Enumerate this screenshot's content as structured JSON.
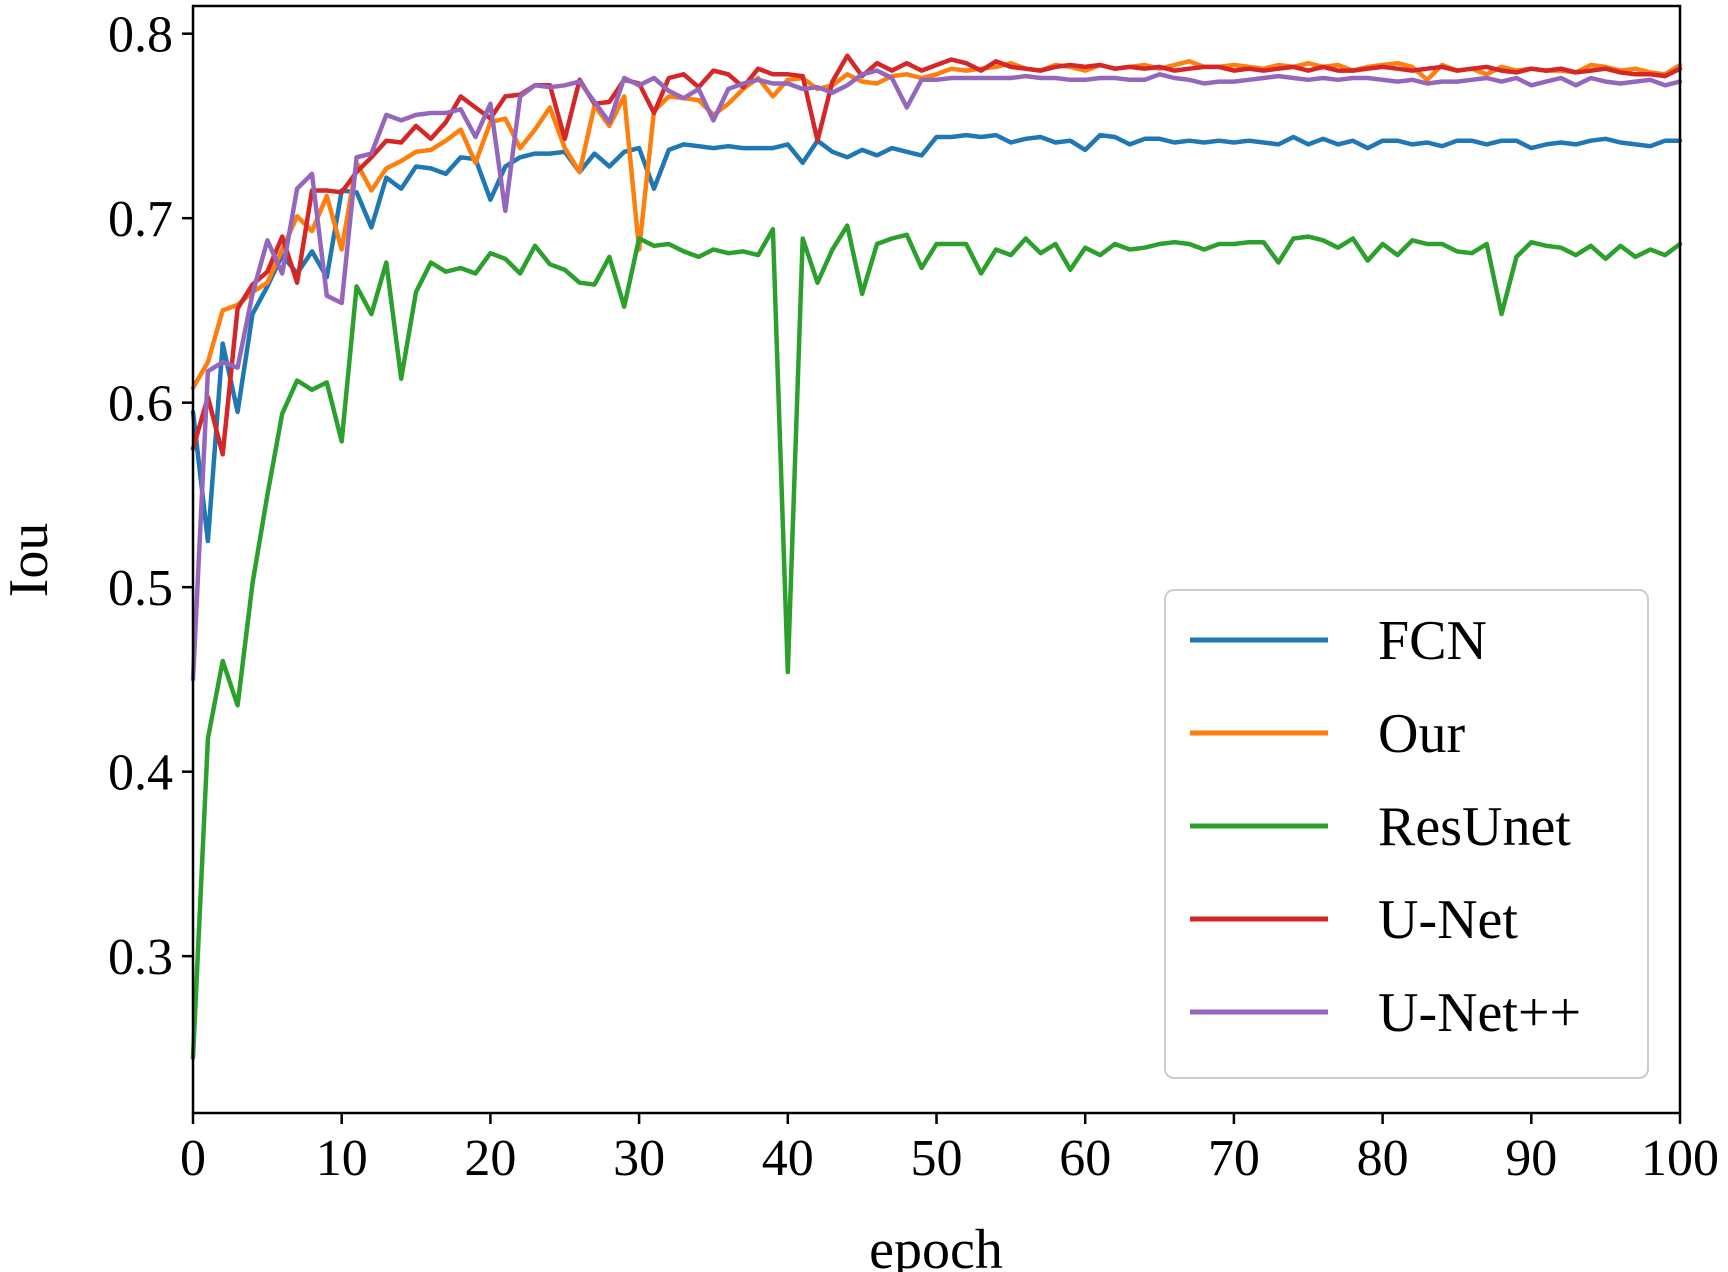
{
  "chart_data": {
    "type": "line",
    "title": "",
    "xlabel": "epoch",
    "ylabel": "Iou",
    "xlim": [
      0,
      100
    ],
    "ylim": [
      0.215,
      0.815
    ],
    "xticks": [
      0,
      10,
      20,
      30,
      40,
      50,
      60,
      70,
      80,
      90,
      100
    ],
    "yticks": [
      0.3,
      0.4,
      0.5,
      0.6,
      0.7,
      0.8
    ],
    "xtick_labels": [
      "0",
      "10",
      "20",
      "30",
      "40",
      "50",
      "60",
      "70",
      "80",
      "90",
      "100"
    ],
    "ytick_labels": [
      "0.3",
      "0.4",
      "0.5",
      "0.6",
      "0.7",
      "0.8"
    ],
    "grid": false,
    "legend_position": "lower-right",
    "x": [
      0,
      1,
      2,
      3,
      4,
      5,
      6,
      7,
      8,
      9,
      10,
      11,
      12,
      13,
      14,
      15,
      16,
      17,
      18,
      19,
      20,
      21,
      22,
      23,
      24,
      25,
      26,
      27,
      28,
      29,
      30,
      31,
      32,
      33,
      34,
      35,
      36,
      37,
      38,
      39,
      40,
      41,
      42,
      43,
      44,
      45,
      46,
      47,
      48,
      49,
      50,
      51,
      52,
      53,
      54,
      55,
      56,
      57,
      58,
      59,
      60,
      61,
      62,
      63,
      64,
      65,
      66,
      67,
      68,
      69,
      70,
      71,
      72,
      73,
      74,
      75,
      76,
      77,
      78,
      79,
      80,
      81,
      82,
      83,
      84,
      85,
      86,
      87,
      88,
      89,
      90,
      91,
      92,
      93,
      94,
      95,
      96,
      97,
      98,
      99,
      100
    ],
    "series": [
      {
        "name": "FCN",
        "color": "#1f77b4",
        "values": [
          0.595,
          0.525,
          0.632,
          0.595,
          0.648,
          0.663,
          0.68,
          0.67,
          0.682,
          0.668,
          0.715,
          0.714,
          0.695,
          0.722,
          0.716,
          0.728,
          0.727,
          0.724,
          0.733,
          0.732,
          0.71,
          0.728,
          0.733,
          0.735,
          0.735,
          0.736,
          0.725,
          0.735,
          0.728,
          0.736,
          0.738,
          0.716,
          0.737,
          0.74,
          0.739,
          0.738,
          0.739,
          0.738,
          0.738,
          0.738,
          0.74,
          0.73,
          0.742,
          0.736,
          0.733,
          0.737,
          0.734,
          0.738,
          0.736,
          0.734,
          0.744,
          0.744,
          0.745,
          0.744,
          0.745,
          0.741,
          0.743,
          0.744,
          0.741,
          0.742,
          0.737,
          0.745,
          0.744,
          0.74,
          0.743,
          0.743,
          0.741,
          0.742,
          0.741,
          0.742,
          0.741,
          0.742,
          0.741,
          0.74,
          0.744,
          0.74,
          0.743,
          0.74,
          0.742,
          0.738,
          0.742,
          0.742,
          0.74,
          0.741,
          0.739,
          0.742,
          0.742,
          0.74,
          0.742,
          0.742,
          0.738,
          0.74,
          0.741,
          0.74,
          0.742,
          0.743,
          0.741,
          0.74,
          0.739,
          0.742,
          0.742
        ]
      },
      {
        "name": "Our",
        "color": "#ff7f0e",
        "values": [
          0.608,
          0.622,
          0.65,
          0.653,
          0.66,
          0.665,
          0.683,
          0.701,
          0.693,
          0.712,
          0.683,
          0.73,
          0.715,
          0.727,
          0.731,
          0.736,
          0.737,
          0.742,
          0.748,
          0.73,
          0.752,
          0.754,
          0.738,
          0.748,
          0.76,
          0.738,
          0.725,
          0.761,
          0.75,
          0.766,
          0.683,
          0.758,
          0.766,
          0.765,
          0.764,
          0.756,
          0.762,
          0.77,
          0.776,
          0.766,
          0.775,
          0.776,
          0.77,
          0.772,
          0.778,
          0.774,
          0.773,
          0.777,
          0.778,
          0.776,
          0.778,
          0.781,
          0.78,
          0.781,
          0.782,
          0.784,
          0.781,
          0.78,
          0.783,
          0.782,
          0.78,
          0.783,
          0.781,
          0.782,
          0.783,
          0.781,
          0.783,
          0.785,
          0.782,
          0.782,
          0.783,
          0.782,
          0.781,
          0.783,
          0.782,
          0.784,
          0.782,
          0.783,
          0.78,
          0.782,
          0.783,
          0.784,
          0.782,
          0.775,
          0.783,
          0.78,
          0.781,
          0.778,
          0.782,
          0.78,
          0.781,
          0.78,
          0.78,
          0.779,
          0.783,
          0.782,
          0.78,
          0.781,
          0.779,
          0.778,
          0.783
        ]
      },
      {
        "name": "ResUnet",
        "color": "#2ca02c",
        "values": [
          0.245,
          0.418,
          0.46,
          0.436,
          0.502,
          0.55,
          0.594,
          0.612,
          0.607,
          0.611,
          0.579,
          0.663,
          0.648,
          0.676,
          0.613,
          0.66,
          0.676,
          0.671,
          0.673,
          0.67,
          0.681,
          0.678,
          0.67,
          0.685,
          0.675,
          0.672,
          0.665,
          0.664,
          0.679,
          0.652,
          0.689,
          0.685,
          0.686,
          0.682,
          0.679,
          0.683,
          0.681,
          0.682,
          0.68,
          0.694,
          0.454,
          0.689,
          0.665,
          0.683,
          0.696,
          0.659,
          0.686,
          0.689,
          0.691,
          0.673,
          0.686,
          0.686,
          0.686,
          0.67,
          0.683,
          0.68,
          0.689,
          0.681,
          0.686,
          0.672,
          0.684,
          0.68,
          0.686,
          0.683,
          0.684,
          0.686,
          0.687,
          0.686,
          0.683,
          0.686,
          0.686,
          0.687,
          0.687,
          0.676,
          0.689,
          0.69,
          0.688,
          0.684,
          0.689,
          0.677,
          0.686,
          0.68,
          0.688,
          0.686,
          0.686,
          0.682,
          0.681,
          0.686,
          0.648,
          0.679,
          0.687,
          0.685,
          0.684,
          0.68,
          0.685,
          0.678,
          0.685,
          0.679,
          0.683,
          0.68,
          0.686
        ]
      },
      {
        "name": "U-Net",
        "color": "#d62728",
        "values": [
          0.575,
          0.603,
          0.572,
          0.651,
          0.664,
          0.671,
          0.69,
          0.665,
          0.715,
          0.715,
          0.714,
          0.725,
          0.733,
          0.742,
          0.741,
          0.75,
          0.743,
          0.752,
          0.766,
          0.76,
          0.754,
          0.766,
          0.767,
          0.772,
          0.772,
          0.743,
          0.775,
          0.762,
          0.763,
          0.775,
          0.773,
          0.757,
          0.776,
          0.778,
          0.771,
          0.78,
          0.778,
          0.771,
          0.781,
          0.778,
          0.778,
          0.777,
          0.742,
          0.774,
          0.788,
          0.777,
          0.784,
          0.78,
          0.784,
          0.78,
          0.783,
          0.786,
          0.784,
          0.78,
          0.785,
          0.782,
          0.781,
          0.78,
          0.782,
          0.783,
          0.782,
          0.783,
          0.781,
          0.782,
          0.781,
          0.782,
          0.78,
          0.781,
          0.782,
          0.782,
          0.78,
          0.781,
          0.78,
          0.781,
          0.782,
          0.78,
          0.782,
          0.78,
          0.78,
          0.781,
          0.782,
          0.781,
          0.78,
          0.781,
          0.782,
          0.78,
          0.781,
          0.782,
          0.78,
          0.779,
          0.781,
          0.78,
          0.781,
          0.779,
          0.78,
          0.781,
          0.779,
          0.778,
          0.778,
          0.777,
          0.781
        ]
      },
      {
        "name": "U-Net++",
        "color": "#9467bd",
        "values": [
          0.45,
          0.617,
          0.622,
          0.619,
          0.659,
          0.688,
          0.67,
          0.716,
          0.724,
          0.658,
          0.654,
          0.733,
          0.735,
          0.756,
          0.753,
          0.756,
          0.757,
          0.757,
          0.759,
          0.744,
          0.762,
          0.704,
          0.766,
          0.772,
          0.771,
          0.772,
          0.774,
          0.763,
          0.752,
          0.776,
          0.772,
          0.776,
          0.769,
          0.765,
          0.77,
          0.753,
          0.77,
          0.773,
          0.775,
          0.773,
          0.773,
          0.77,
          0.771,
          0.768,
          0.772,
          0.778,
          0.78,
          0.776,
          0.76,
          0.775,
          0.775,
          0.776,
          0.776,
          0.776,
          0.776,
          0.776,
          0.777,
          0.776,
          0.776,
          0.775,
          0.775,
          0.776,
          0.776,
          0.775,
          0.775,
          0.778,
          0.776,
          0.775,
          0.773,
          0.774,
          0.774,
          0.775,
          0.776,
          0.777,
          0.776,
          0.775,
          0.776,
          0.775,
          0.776,
          0.776,
          0.775,
          0.774,
          0.775,
          0.773,
          0.774,
          0.774,
          0.775,
          0.776,
          0.774,
          0.776,
          0.772,
          0.774,
          0.776,
          0.772,
          0.776,
          0.774,
          0.773,
          0.774,
          0.775,
          0.772,
          0.774
        ]
      }
    ]
  }
}
